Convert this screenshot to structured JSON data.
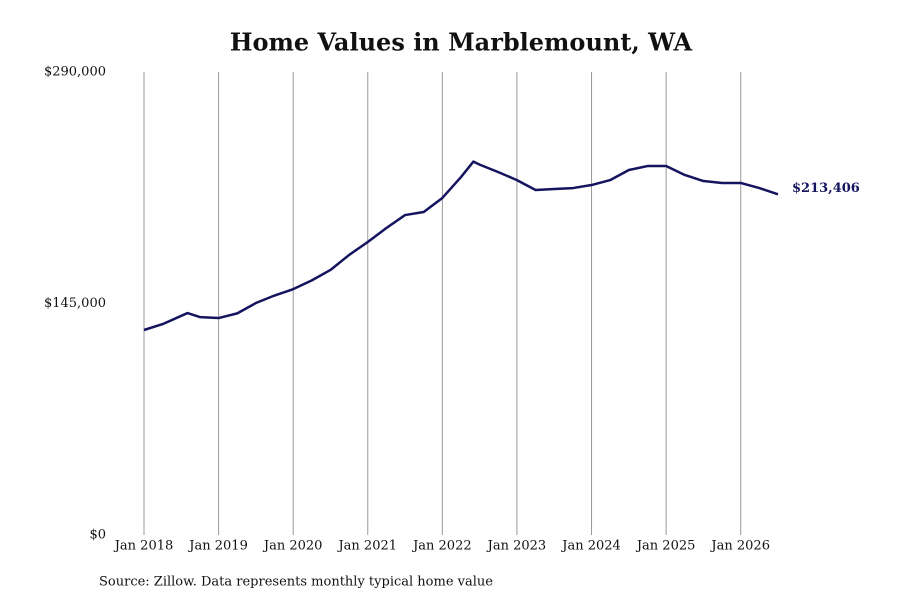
{
  "chart_data": {
    "type": "line",
    "title": "Home Values in Marblemount, WA",
    "source": "Source: Zillow. Data represents monthly typical home value",
    "x": [
      "2018-01",
      "2018-04",
      "2018-08",
      "2018-10",
      "2019-01",
      "2019-04",
      "2019-07",
      "2019-10",
      "2020-01",
      "2020-04",
      "2020-07",
      "2020-10",
      "2021-01",
      "2021-04",
      "2021-07",
      "2021-10",
      "2022-01",
      "2022-04",
      "2022-06",
      "2022-07",
      "2022-10",
      "2023-01",
      "2023-04",
      "2023-07",
      "2023-10",
      "2024-01",
      "2024-04",
      "2024-07",
      "2024-10",
      "2025-01",
      "2025-04",
      "2025-07",
      "2025-10",
      "2026-01",
      "2026-04",
      "2026-07"
    ],
    "series": [
      {
        "name": "Marblemount, WA",
        "color": "#14145f",
        "values": [
          128400,
          132100,
          139000,
          136500,
          135900,
          138800,
          145300,
          150000,
          154000,
          159500,
          166000,
          175400,
          183500,
          192300,
          200400,
          202300,
          211100,
          224200,
          233900,
          232000,
          227300,
          222300,
          216100,
          216700,
          217300,
          219200,
          222300,
          228600,
          231100,
          231100,
          225500,
          221700,
          220500,
          220500,
          217300,
          213406
        ],
        "value_labels": [
          null,
          null,
          null,
          null,
          null,
          null,
          null,
          null,
          null,
          null,
          null,
          null,
          null,
          null,
          null,
          null,
          null,
          null,
          null,
          null,
          null,
          null,
          null,
          null,
          null,
          null,
          null,
          null,
          null,
          null,
          null,
          null,
          null,
          null,
          null,
          "$213,406"
        ]
      }
    ],
    "xlim": [
      "2018-01",
      "2026-07"
    ],
    "xticks": [
      {
        "value": "2018-01",
        "label": "Jan 2018"
      },
      {
        "value": "2019-01",
        "label": "Jan 2019"
      },
      {
        "value": "2020-01",
        "label": "Jan 2020"
      },
      {
        "value": "2021-01",
        "label": "Jan 2021"
      },
      {
        "value": "2022-01",
        "label": "Jan 2022"
      },
      {
        "value": "2023-01",
        "label": "Jan 2023"
      },
      {
        "value": "2024-01",
        "label": "Jan 2024"
      },
      {
        "value": "2025-01",
        "label": "Jan 2025"
      },
      {
        "value": "2026-01",
        "label": "Jan 2026"
      }
    ],
    "ylim": [
      0,
      290000
    ],
    "yticks": [
      {
        "value": 0,
        "label": "$0"
      },
      {
        "value": 145000,
        "label": "$145,000"
      },
      {
        "value": 290000,
        "label": "$290,000"
      }
    ],
    "grid": "x"
  }
}
